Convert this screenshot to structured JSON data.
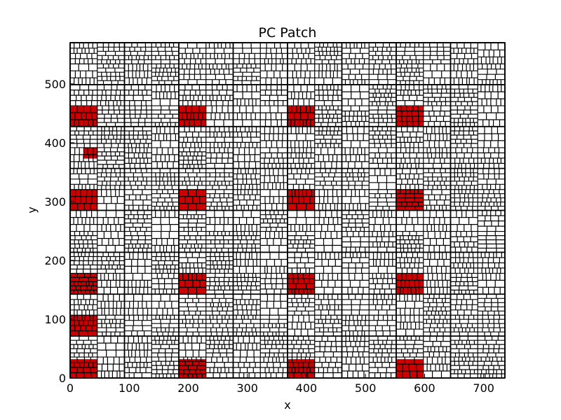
{
  "chart_data": {
    "type": "heatmap",
    "title": "PC Patch",
    "xlabel": "x",
    "ylabel": "y",
    "xlim": [
      0,
      736
    ],
    "ylim": [
      0,
      570
    ],
    "x_ticks": [
      0,
      100,
      200,
      300,
      400,
      500,
      600,
      700
    ],
    "y_ticks": [
      0,
      100,
      200,
      300,
      400,
      500
    ],
    "grid_pattern": "dense black-outlined rectangular cells (patch boxes) covering the whole domain",
    "colors": {
      "background": "#ffffff",
      "cell_outline": "#000000",
      "highlight": "#cc0000"
    },
    "highlighted_regions": [
      {
        "x0": 0,
        "x1": 46,
        "y0": 0,
        "y1": 32
      },
      {
        "x0": 184,
        "x1": 230,
        "y0": 0,
        "y1": 32
      },
      {
        "x0": 368,
        "x1": 414,
        "y0": 0,
        "y1": 32
      },
      {
        "x0": 552,
        "x1": 598,
        "y0": 0,
        "y1": 32
      },
      {
        "x0": 0,
        "x1": 46,
        "y0": 71,
        "y1": 107
      },
      {
        "x0": 0,
        "x1": 46,
        "y0": 142,
        "y1": 178
      },
      {
        "x0": 184,
        "x1": 230,
        "y0": 142,
        "y1": 178
      },
      {
        "x0": 368,
        "x1": 414,
        "y0": 142,
        "y1": 178
      },
      {
        "x0": 552,
        "x1": 598,
        "y0": 142,
        "y1": 178
      },
      {
        "x0": 0,
        "x1": 46,
        "y0": 285,
        "y1": 320
      },
      {
        "x0": 184,
        "x1": 230,
        "y0": 285,
        "y1": 320
      },
      {
        "x0": 368,
        "x1": 414,
        "y0": 285,
        "y1": 320
      },
      {
        "x0": 552,
        "x1": 598,
        "y0": 285,
        "y1": 320
      },
      {
        "x0": 23,
        "x1": 46,
        "y0": 373,
        "y1": 391
      },
      {
        "x0": 0,
        "x1": 46,
        "y0": 427,
        "y1": 462
      },
      {
        "x0": 184,
        "x1": 230,
        "y0": 427,
        "y1": 462
      },
      {
        "x0": 368,
        "x1": 414,
        "y0": 427,
        "y1": 462
      },
      {
        "x0": 552,
        "x1": 598,
        "y0": 427,
        "y1": 462
      }
    ]
  }
}
